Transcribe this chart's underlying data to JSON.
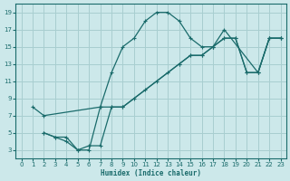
{
  "bg_color": "#cce8ea",
  "grid_color": "#a8ced0",
  "line_color": "#1a6b6b",
  "xlabel": "Humidex (Indice chaleur)",
  "xlim": [
    -0.5,
    23.5
  ],
  "ylim": [
    2,
    20
  ],
  "xticks": [
    0,
    1,
    2,
    3,
    4,
    5,
    6,
    7,
    8,
    9,
    10,
    11,
    12,
    13,
    14,
    15,
    16,
    17,
    18,
    19,
    20,
    21,
    22,
    23
  ],
  "yticks": [
    3,
    5,
    7,
    9,
    11,
    13,
    15,
    17,
    19
  ],
  "lines": [
    {
      "x": [
        1,
        2,
        7,
        8,
        9,
        10,
        11,
        12,
        13,
        14,
        15,
        16,
        17,
        18,
        21,
        22,
        23
      ],
      "y": [
        8,
        7,
        8,
        12,
        15,
        16,
        18,
        19,
        19,
        18,
        16,
        15,
        15,
        17,
        12,
        16,
        16
      ]
    },
    {
      "x": [
        2,
        3,
        4,
        5,
        6,
        7,
        8,
        9,
        10,
        11,
        12,
        13,
        14,
        15,
        16,
        17,
        18,
        19,
        20,
        21,
        22,
        23
      ],
      "y": [
        5,
        4.5,
        4,
        3,
        3,
        8,
        8,
        8,
        9,
        10,
        11,
        12,
        13,
        14,
        14,
        15,
        16,
        16,
        12,
        12,
        16,
        16
      ]
    },
    {
      "x": [
        2,
        3,
        4,
        5,
        6,
        7,
        8,
        9,
        14,
        15,
        16,
        17,
        18,
        19,
        20,
        21,
        22,
        23
      ],
      "y": [
        5,
        4.5,
        4.5,
        3,
        3.5,
        3.5,
        8,
        8,
        13,
        14,
        14,
        15,
        16,
        16,
        12,
        12,
        16,
        16
      ]
    }
  ]
}
